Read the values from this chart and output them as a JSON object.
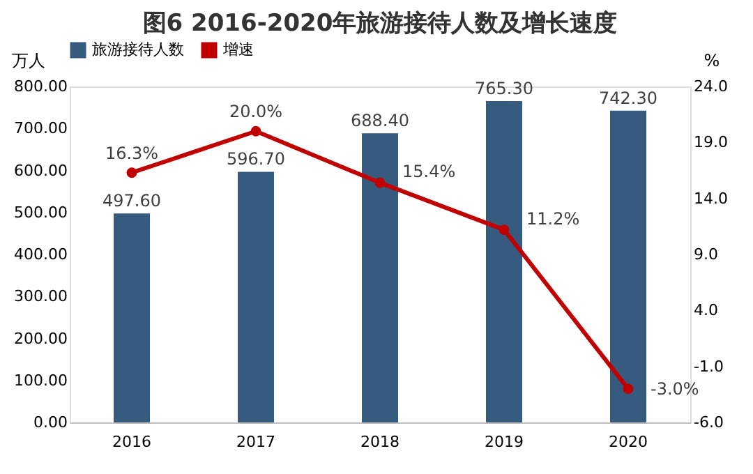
{
  "chart_data": {
    "type": "bar",
    "title": "图6 2016-2020年旅游接待人数及增长速度",
    "ylabel": "万人",
    "y2label": "%",
    "categories": [
      "2016",
      "2017",
      "2018",
      "2019",
      "2020"
    ],
    "series": [
      {
        "name": "旅游接待人数",
        "type": "bar",
        "color": "#375a7f",
        "values": [
          497.6,
          596.7,
          688.4,
          765.3,
          742.3
        ],
        "value_labels": [
          "497.60",
          "596.70",
          "688.40",
          "765.30",
          "742.30"
        ]
      },
      {
        "name": "增速",
        "type": "line",
        "axis": "y2",
        "color": "#c00000",
        "marker": "circle",
        "values": [
          16.3,
          20.0,
          15.4,
          11.2,
          -3.0
        ],
        "value_labels": [
          "16.3%",
          "20.0%",
          "15.4%",
          "11.2%",
          "-3.0%"
        ]
      }
    ],
    "ylim": [
      0,
      800
    ],
    "yticks": [
      {
        "value": 0,
        "label": "0.00"
      },
      {
        "value": 100,
        "label": "100.00"
      },
      {
        "value": 200,
        "label": "200.00"
      },
      {
        "value": 300,
        "label": "300.00"
      },
      {
        "value": 400,
        "label": "400.00"
      },
      {
        "value": 500,
        "label": "500.00"
      },
      {
        "value": 600,
        "label": "600.00"
      },
      {
        "value": 700,
        "label": "700.00"
      },
      {
        "value": 800,
        "label": "800.00"
      }
    ],
    "y2lim": [
      -6,
      24
    ],
    "y2ticks": [
      {
        "value": -6,
        "label": "-6.0"
      },
      {
        "value": -1,
        "label": "-1.0"
      },
      {
        "value": 4,
        "label": "4.0"
      },
      {
        "value": 9,
        "label": "9.0"
      },
      {
        "value": 14,
        "label": "14.0"
      },
      {
        "value": 19,
        "label": "19.0"
      },
      {
        "value": 24,
        "label": "24.0"
      }
    ],
    "legend": "top",
    "grid": false
  }
}
